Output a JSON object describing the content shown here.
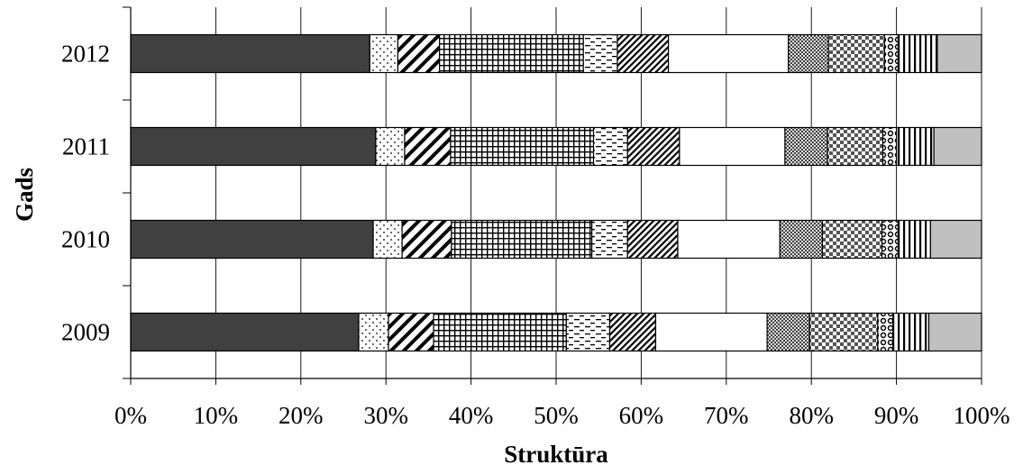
{
  "chart_data": {
    "type": "bar",
    "orientation": "horizontal",
    "stacked": "percent",
    "xlabel": "Struktūra",
    "ylabel": "Gads",
    "xlim": [
      0,
      100
    ],
    "x_ticks": [
      "0%",
      "10%",
      "20%",
      "30%",
      "40%",
      "50%",
      "60%",
      "70%",
      "80%",
      "90%",
      "100%"
    ],
    "grid": "vertical",
    "legend": "none",
    "categories": [
      "2012",
      "2011",
      "2010",
      "2009"
    ],
    "segment_styles": [
      {
        "fill": "#404040",
        "pattern": "solid"
      },
      {
        "fill": "#ffffff",
        "pattern": "dots"
      },
      {
        "fill": "#ffffff",
        "pattern": "wide-diagonal"
      },
      {
        "fill": "#ffffff",
        "pattern": "grid"
      },
      {
        "fill": "#ffffff",
        "pattern": "dashes"
      },
      {
        "fill": "#ffffff",
        "pattern": "dense-diagonal"
      },
      {
        "fill": "#ffffff",
        "pattern": "solid"
      },
      {
        "fill": "#ffffff",
        "pattern": "fine-crosshatch"
      },
      {
        "fill": "#ffffff",
        "pattern": "checker"
      },
      {
        "fill": "#ffffff",
        "pattern": "rings"
      },
      {
        "fill": "#ffffff",
        "pattern": "vertical-lines"
      },
      {
        "fill": "#c0c0c0",
        "pattern": "solid"
      }
    ],
    "series": [
      {
        "values": [
          28.1,
          28.8,
          28.5,
          26.8
        ]
      },
      {
        "values": [
          3.3,
          3.4,
          3.4,
          3.5
        ]
      },
      {
        "values": [
          4.9,
          5.4,
          5.8,
          5.3
        ]
      },
      {
        "values": [
          16.9,
          16.8,
          16.5,
          15.6
        ]
      },
      {
        "values": [
          4.0,
          4.0,
          4.2,
          5.1
        ]
      },
      {
        "values": [
          6.0,
          6.1,
          5.9,
          5.4
        ]
      },
      {
        "values": [
          14.1,
          12.4,
          12.0,
          13.1
        ]
      },
      {
        "values": [
          4.7,
          5.0,
          5.0,
          5.0
        ]
      },
      {
        "values": [
          6.6,
          6.5,
          7.0,
          8.0
        ]
      },
      {
        "values": [
          1.6,
          1.6,
          1.9,
          1.8
        ]
      },
      {
        "values": [
          4.6,
          4.4,
          3.8,
          4.2
        ]
      },
      {
        "values": [
          5.2,
          5.6,
          6.0,
          6.2
        ]
      }
    ]
  }
}
